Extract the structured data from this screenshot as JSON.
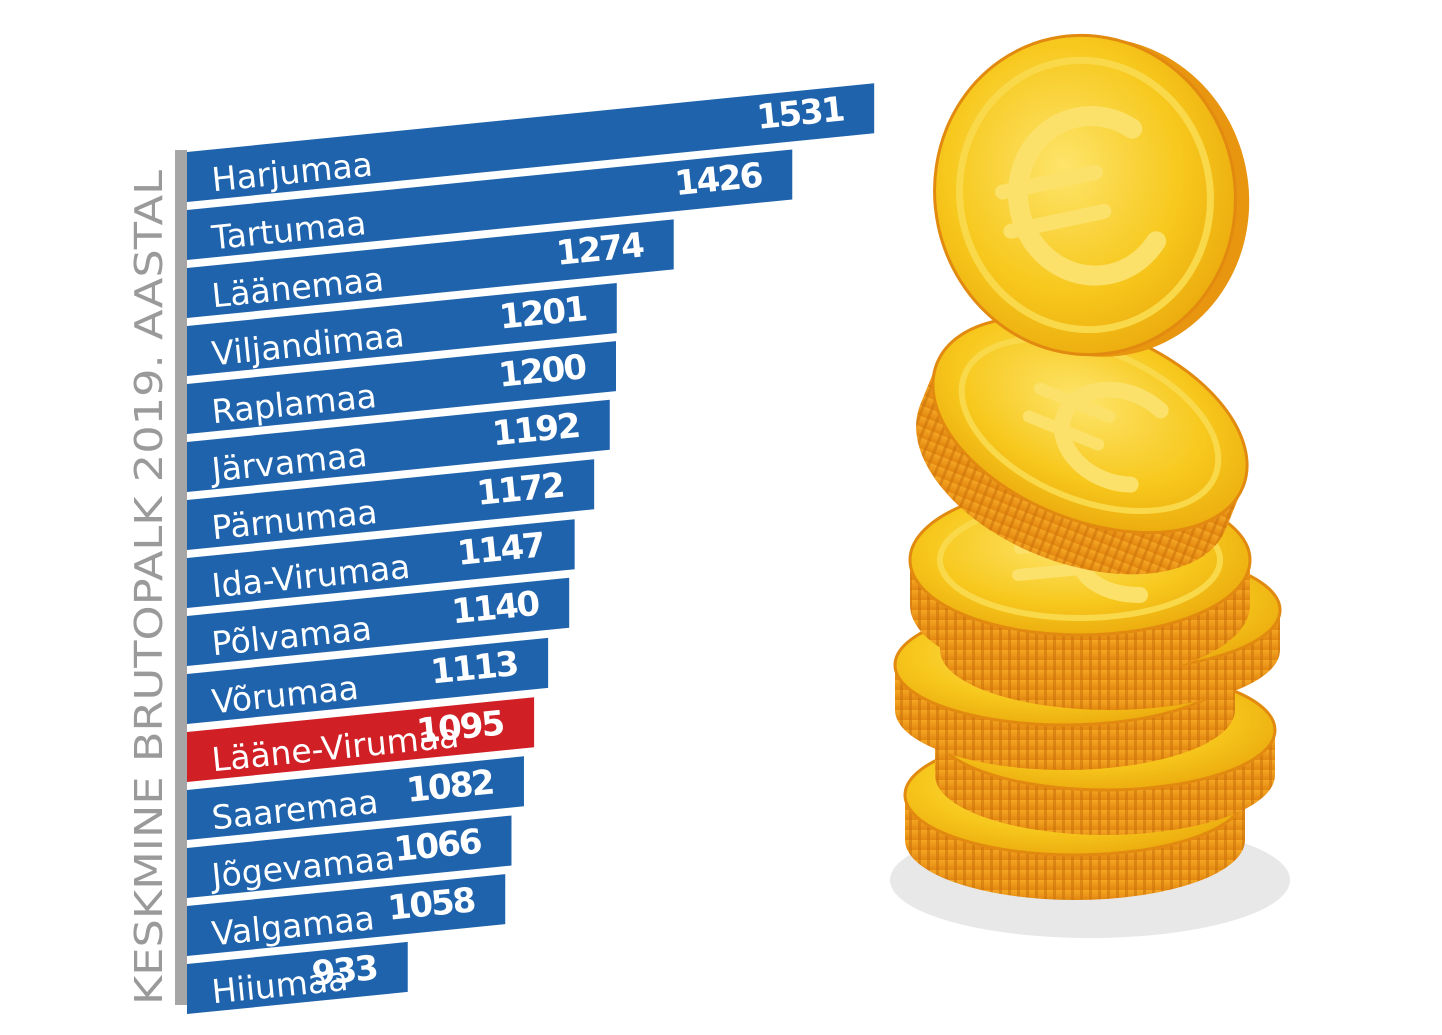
{
  "chart_data": {
    "type": "bar",
    "orientation": "horizontal",
    "title": "KESKMINE BRUTOPALK 2019. AASTAL",
    "categories": [
      "Harjumaa",
      "Tartumaa",
      "Läänemaa",
      "Viljandimaa",
      "Raplamaa",
      "Järvamaa",
      "Pärnumaa",
      "Ida-Virumaa",
      "Põlvamaa",
      "Võrumaa",
      "Lääne-Virumaa",
      "Saaremaa",
      "Jõgevamaa",
      "Valgamaa",
      "Hiiumaa"
    ],
    "values": [
      1531,
      1426,
      1274,
      1201,
      1200,
      1192,
      1172,
      1147,
      1140,
      1113,
      1095,
      1082,
      1066,
      1058,
      933
    ],
    "highlight": "Lääne-Virumaa",
    "colors": {
      "bar": "#1f63ad",
      "highlight": "#d11f26",
      "axis": "#a6a6a6",
      "title": "#9a9a9a"
    }
  },
  "illustration": {
    "icon": "euro-coin-stack-icon"
  }
}
